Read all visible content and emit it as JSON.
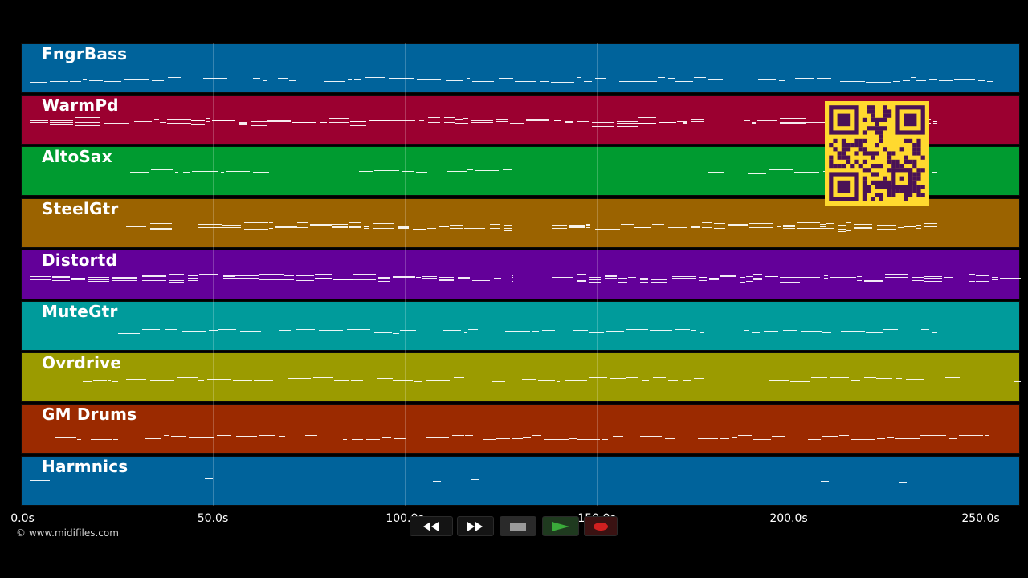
{
  "timeline": {
    "ticks": [
      {
        "label": "0.0s",
        "seconds": 0
      },
      {
        "label": "50.0s",
        "seconds": 50
      },
      {
        "label": "100.0s",
        "seconds": 100
      },
      {
        "label": "150.0s",
        "seconds": 150
      },
      {
        "label": "200.0s",
        "seconds": 200
      },
      {
        "label": "250.0s",
        "seconds": 250
      }
    ]
  },
  "tracks": [
    {
      "name": "FngrBass",
      "color": "#00639b"
    },
    {
      "name": "WarmPd",
      "color": "#9b0030"
    },
    {
      "name": "AltoSax",
      "color": "#009b30"
    },
    {
      "name": "SteelGtr",
      "color": "#9b6300"
    },
    {
      "name": "Distortd",
      "color": "#630099"
    },
    {
      "name": "MuteGtr",
      "color": "#009b9b"
    },
    {
      "name": "Ovrdrive",
      "color": "#9b9b00"
    },
    {
      "name": "GM Drums",
      "color": "#9b2a00"
    },
    {
      "name": "Harmnics",
      "color": "#00639b"
    }
  ],
  "footer": {
    "copyright": "© www.midifiles.com"
  },
  "transport": {
    "buttons": [
      {
        "name": "rewind-button",
        "icon": "rewind-icon",
        "accent": "#ffffff"
      },
      {
        "name": "fast-forward-button",
        "icon": "fast-forward-icon",
        "accent": "#ffffff"
      },
      {
        "name": "stop-button",
        "icon": "stop-icon",
        "accent": "#9a9a9a"
      },
      {
        "name": "play-button",
        "icon": "play-icon",
        "accent": "#3aaa3a"
      },
      {
        "name": "record-button",
        "icon": "record-icon",
        "accent": "#d02020"
      }
    ]
  },
  "qr_code": {
    "color": "#ffd92f",
    "module_color": "#4a1256"
  }
}
